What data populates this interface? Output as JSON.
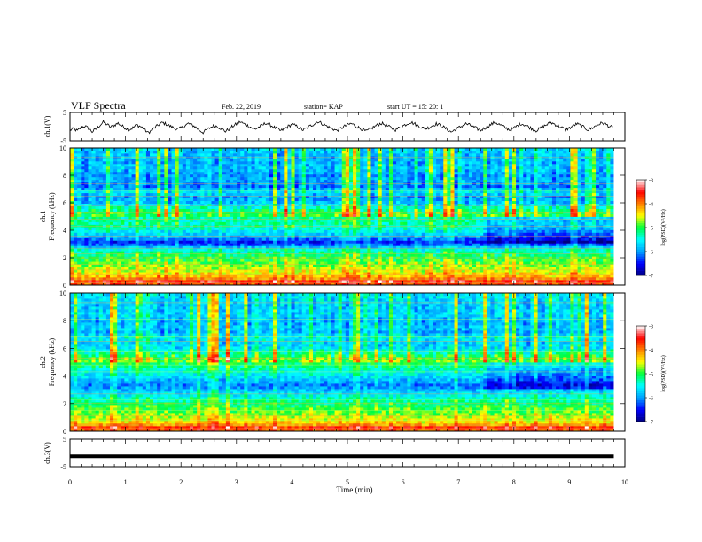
{
  "header": {
    "title": "VLF Spectra",
    "date": "Feb. 22, 2019",
    "station": "station= KAP",
    "start": "start  UT =   15: 20: 1"
  },
  "colorbar": {
    "label": "log(PSD)(V²/Hz)",
    "ticks": [
      "-3",
      "-4",
      "-5",
      "-6",
      "-7"
    ],
    "range": [
      -7,
      -3
    ],
    "colors": [
      "#000080",
      "#0000ff",
      "#00a0ff",
      "#00ffff",
      "#00ff40",
      "#ffff00",
      "#ff8000",
      "#ff0000",
      "#ffffff"
    ]
  },
  "chart_data": [
    {
      "type": "line",
      "name": "ch1-waveform",
      "ylabel": "ch.1(V)",
      "ylim": [
        -5,
        5
      ],
      "yticks": [
        "5",
        "-5"
      ],
      "xlim": [
        0,
        10
      ],
      "trace": [
        -1.2,
        -0.8,
        -1.5,
        -0.3,
        0.2,
        -0.6,
        -1.8,
        -0.9,
        0.4,
        1.6,
        0.8,
        -0.2,
        0.5,
        1.2,
        0.3,
        -0.5,
        -1.1,
        -0.4,
        0.6,
        0.1,
        -0.7,
        -2.2,
        -1.4,
        -0.3,
        0.7,
        1.4,
        0.9,
        0.2,
        -0.4,
        -1.0,
        -0.5,
        0.3,
        1.1,
        0.6,
        -0.2,
        -1.3,
        -2.0,
        -1.1,
        -0.3,
        0.4,
        0.0,
        -0.8,
        -1.6,
        -0.9,
        0.2,
        0.9,
        1.7,
        1.0,
        0.4,
        -0.3,
        -0.9,
        -0.2,
        0.5,
        1.3,
        0.7,
        -0.1,
        -0.8,
        -1.5,
        -0.7,
        0.1,
        0.8,
        0.3,
        -0.4,
        -1.2,
        -0.6,
        0.3,
        1.0,
        1.8,
        1.2,
        0.5,
        -0.2,
        -0.7,
        -1.4,
        -0.8,
        0.0,
        0.6,
        1.1,
        0.4,
        -0.3,
        -0.9,
        -1.7,
        -1.0,
        -0.2,
        0.5,
        1.2,
        0.8,
        0.1,
        -0.5,
        -1.1,
        -0.4,
        0.3,
        0.9,
        1.6,
        1.1,
        0.4,
        -0.2,
        -0.8,
        -0.3,
        0.4,
        1.0,
        0.5,
        -0.2,
        -1.0,
        -1.9,
        -1.2,
        -0.4,
        0.3,
        1.0,
        0.6,
        -0.1,
        -0.7,
        -1.3,
        -0.6,
        0.2,
        0.9,
        1.5,
        0.8,
        0.1,
        -0.6,
        -1.2,
        -0.5,
        0.4,
        1.1,
        0.6,
        -0.1,
        -0.8,
        -1.4,
        -0.7,
        0.1,
        0.8,
        1.4,
        0.9,
        0.2,
        -0.4,
        -1.0,
        -0.5,
        0.3,
        1.0,
        0.4,
        -0.3,
        -1.1,
        -0.6,
        0.2,
        0.9,
        1.3,
        0.7,
        0.0,
        -0.6
      ]
    },
    {
      "type": "heatmap",
      "name": "ch1-spectrogram",
      "ylabel": "ch.1\nFrequency (kHz)",
      "ylim": [
        0,
        10
      ],
      "yticks": [
        "0",
        "2",
        "4",
        "6",
        "8",
        "10"
      ],
      "xlim": [
        0,
        10
      ],
      "zlim": [
        -7,
        -3
      ],
      "data_end_time_min": 9.8,
      "band_profile_kHz_logPSD": [
        [
          0.0,
          -4.0
        ],
        [
          0.3,
          -3.6
        ],
        [
          0.6,
          -4.3
        ],
        [
          1.0,
          -4.6
        ],
        [
          1.4,
          -4.8
        ],
        [
          1.8,
          -5.0
        ],
        [
          2.2,
          -5.2
        ],
        [
          2.6,
          -5.5
        ],
        [
          2.9,
          -6.1
        ],
        [
          3.1,
          -6.6
        ],
        [
          3.3,
          -6.3
        ],
        [
          3.6,
          -5.9
        ],
        [
          4.0,
          -5.6
        ],
        [
          4.4,
          -5.3
        ],
        [
          4.8,
          -5.4
        ],
        [
          5.2,
          -5.1
        ],
        [
          5.6,
          -5.5
        ],
        [
          6.0,
          -6.0
        ],
        [
          6.4,
          -6.2
        ],
        [
          6.8,
          -5.8
        ],
        [
          7.2,
          -6.3
        ],
        [
          7.6,
          -6.1
        ],
        [
          8.0,
          -6.2
        ],
        [
          8.5,
          -6.0
        ],
        [
          9.0,
          -6.1
        ],
        [
          9.5,
          -6.0
        ],
        [
          10.0,
          -5.9
        ]
      ]
    },
    {
      "type": "heatmap",
      "name": "ch2-spectrogram",
      "ylabel": "ch.2\nFrequency (kHz)",
      "ylim": [
        0,
        10
      ],
      "yticks": [
        "0",
        "2",
        "4",
        "6",
        "8",
        "10"
      ],
      "xlim": [
        0,
        10
      ],
      "zlim": [
        -7,
        -3
      ],
      "data_end_time_min": 9.8,
      "band_profile_kHz_logPSD": [
        [
          0.0,
          -4.1
        ],
        [
          0.3,
          -3.7
        ],
        [
          0.6,
          -4.4
        ],
        [
          1.0,
          -4.7
        ],
        [
          1.4,
          -4.9
        ],
        [
          1.8,
          -5.1
        ],
        [
          2.2,
          -5.3
        ],
        [
          2.6,
          -5.6
        ],
        [
          3.0,
          -5.9
        ],
        [
          3.3,
          -6.2
        ],
        [
          3.6,
          -6.0
        ],
        [
          4.0,
          -5.7
        ],
        [
          4.4,
          -5.5
        ],
        [
          4.8,
          -5.2
        ],
        [
          5.2,
          -5.0
        ],
        [
          5.6,
          -5.4
        ],
        [
          6.0,
          -5.8
        ],
        [
          6.4,
          -6.0
        ],
        [
          6.8,
          -5.7
        ],
        [
          7.2,
          -6.1
        ],
        [
          7.6,
          -6.0
        ],
        [
          8.0,
          -6.1
        ],
        [
          8.5,
          -5.9
        ],
        [
          9.0,
          -6.0
        ],
        [
          9.5,
          -5.9
        ],
        [
          10.0,
          -5.8
        ]
      ]
    },
    {
      "type": "line",
      "name": "ch3-waveform",
      "ylabel": "ch.3(V)",
      "ylim": [
        -5,
        5
      ],
      "yticks": [
        "5",
        "-5"
      ],
      "xlim": [
        0,
        10
      ],
      "value": -1.2,
      "data_end_time_min": 9.8
    }
  ],
  "xaxis": {
    "label": "Time (min)",
    "ticks": [
      "0",
      "1",
      "2",
      "3",
      "4",
      "5",
      "6",
      "7",
      "8",
      "9",
      "10"
    ]
  }
}
